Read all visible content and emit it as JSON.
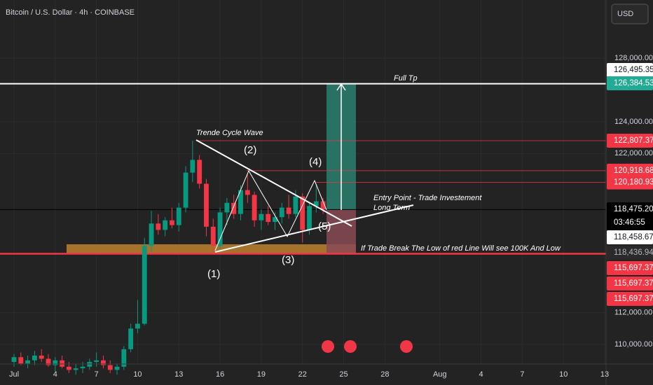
{
  "chart_data": {
    "type": "candlestick",
    "title": "Bitcoin / U.S. Dollar · 4h · COINBASE",
    "currency": "USD",
    "x": [
      1,
      1.5,
      2,
      2.5,
      3,
      3.5,
      4,
      4.5,
      5,
      5.5,
      6,
      6.5,
      7,
      7.5,
      8,
      8.5,
      9,
      9.5,
      10,
      10.5,
      11,
      11.5,
      12,
      12.5,
      13,
      13.5,
      14,
      14.5,
      15,
      15.5,
      16,
      16.5,
      17,
      17.5,
      18,
      18.5,
      19,
      19.5,
      20,
      20.5,
      21,
      21.5,
      22,
      22.5,
      23,
      23.5
    ],
    "open": [
      108900,
      109200,
      108800,
      109000,
      109300,
      109100,
      108700,
      109000,
      108600,
      108400,
      108500,
      108600,
      108900,
      109000,
      108700,
      108400,
      108600,
      109700,
      111000,
      111300,
      116200,
      117600,
      117200,
      117800,
      117500,
      118600,
      120800,
      121600,
      120100,
      117400,
      116200,
      118300,
      118900,
      118200,
      119700,
      119400,
      117800,
      118200,
      117700,
      118000,
      118600,
      118200,
      119300,
      117200,
      118700,
      119000
    ],
    "high": [
      109400,
      109500,
      109300,
      109600,
      109700,
      109400,
      109200,
      109300,
      108900,
      108800,
      108900,
      109100,
      109500,
      109300,
      109000,
      108800,
      109900,
      111300,
      112800,
      116700,
      118400,
      118200,
      118000,
      118600,
      118900,
      121200,
      122807,
      121900,
      120400,
      117900,
      118600,
      119200,
      119400,
      120000,
      120700,
      119600,
      118500,
      118700,
      118300,
      118900,
      119400,
      119700,
      119500,
      118900,
      120100,
      119200
    ],
    "low": [
      108600,
      108700,
      108500,
      108700,
      108900,
      108600,
      108300,
      108500,
      108200,
      108100,
      108200,
      108400,
      108600,
      108500,
      108200,
      108100,
      108400,
      109500,
      110700,
      111200,
      115800,
      116900,
      116800,
      117300,
      117100,
      118300,
      120200,
      119800,
      116800,
      115700,
      116000,
      117500,
      117900,
      117800,
      118900,
      117400,
      117200,
      117500,
      117200,
      117600,
      117900,
      118000,
      116400,
      116900,
      118300,
      118200
    ],
    "close": [
      109200,
      108800,
      109000,
      109300,
      109100,
      108700,
      109000,
      108600,
      108400,
      108500,
      108600,
      108900,
      109000,
      108700,
      108400,
      108600,
      109700,
      111000,
      111300,
      116200,
      117600,
      117200,
      117800,
      117500,
      118600,
      120800,
      121600,
      120100,
      117400,
      116200,
      118300,
      118900,
      118200,
      119700,
      119400,
      117800,
      118200,
      117700,
      118000,
      118600,
      118200,
      119300,
      117200,
      118700,
      119000,
      118475
    ],
    "up_color": "#089981",
    "down_color": "#f23645",
    "xlim": [
      -0.02,
      44.1
    ],
    "xticks": [
      {
        "value": 1,
        "label": "Jul"
      },
      4,
      7,
      10,
      13,
      16,
      19,
      22,
      25,
      28,
      {
        "value": 32,
        "label": "Aug"
      },
      {
        "value": 35,
        "label": "4"
      },
      {
        "value": 38,
        "label": "7"
      },
      {
        "value": 41,
        "label": "10"
      },
      {
        "value": 44,
        "label": "13"
      }
    ],
    "ylim": [
      108770,
      131650
    ],
    "yticks": [
      {
        "value": 110000,
        "label": "110,000.00"
      },
      {
        "value": 112000,
        "label": "112,000.00"
      },
      {
        "value": 122000,
        "label": "122,000.00"
      },
      {
        "value": 124000,
        "label": "124,000.00"
      },
      {
        "value": 128000,
        "label": "128,000.00"
      }
    ],
    "levels": [
      {
        "value": 126384.53,
        "color": "#ffffff"
      },
      {
        "value": 122807.37,
        "color": "#f23645"
      },
      {
        "value": 120918.68,
        "color": "#f23645"
      },
      {
        "value": 120180.93,
        "color": "#f23645"
      },
      {
        "value": 118475.2,
        "color": "#000000"
      },
      {
        "value": 115697.37,
        "color": "#f23645"
      }
    ],
    "price_tags": [
      {
        "value": 126495.35,
        "label": "126,495.35",
        "bg": "#ffffff",
        "fg": "#131722"
      },
      {
        "value": 126384.53,
        "label": "126,384.53",
        "bg": "#22ab94",
        "fg": "#ffffff"
      },
      {
        "value": 122807.37,
        "label": "122,807.37",
        "bg": "#f23645",
        "fg": "#ffffff"
      },
      {
        "value": 120918.68,
        "label": "120,918.68",
        "bg": "#f23645",
        "fg": "#ffffff"
      },
      {
        "value": 120180.93,
        "label": "120,180.93",
        "bg": "#f23645",
        "fg": "#ffffff"
      },
      {
        "value": 118475.2,
        "label": "118,475.20",
        "bg": "#000000",
        "fg": "#ffffff"
      },
      {
        "value": 118458.67,
        "label": "118,458.67",
        "bg": "#ffffff",
        "fg": "#131722"
      },
      {
        "value": 118436.94,
        "label": "118,436.94",
        "bg": "#2a2a2a",
        "fg": "#b2b5be"
      },
      {
        "value": 115697.37,
        "label": "115,697.37",
        "bg": "#f23645",
        "fg": "#ffffff"
      },
      {
        "value": 115697.37,
        "label": "115,697.37",
        "bg": "#f23645",
        "fg": "#ffffff"
      },
      {
        "value": 115697.37,
        "label": "115,697.37",
        "bg": "#f23645",
        "fg": "#ffffff"
      }
    ],
    "countdown": "03:46:55",
    "annotations": [
      "Trende Cycle Wave",
      "(1)",
      "(2)",
      "(3)",
      "(4)",
      "(5)",
      "Full Tp",
      "Entry Point - Trade Investement",
      "Long Term",
      "If Trade Break The Low of red Line Will see 100K And Low"
    ]
  }
}
